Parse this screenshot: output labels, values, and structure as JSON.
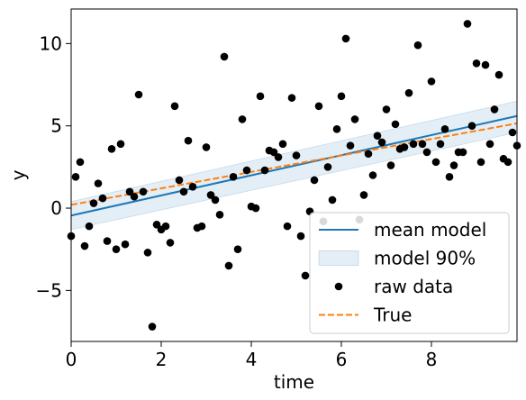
{
  "chart_data": {
    "type": "scatter",
    "title": "",
    "xlabel": "time",
    "ylabel": "y",
    "xlim": [
      0,
      9.9
    ],
    "ylim": [
      -8.1,
      12.1
    ],
    "xticks": [
      0,
      2,
      4,
      6,
      8
    ],
    "yticks": [
      -5,
      0,
      5,
      10
    ],
    "grid": false,
    "legend_position": "lower right",
    "series": [
      {
        "name": "mean model",
        "kind": "line",
        "color": "#1f77b4",
        "x": [
          0,
          9.9
        ],
        "y": [
          -0.45,
          5.6
        ]
      },
      {
        "name": "model 90%",
        "kind": "band",
        "color": "#1f77b4",
        "x": [
          0,
          9.9
        ],
        "lower": [
          -1.3,
          4.6
        ],
        "upper": [
          0.4,
          6.5
        ]
      },
      {
        "name": "raw data",
        "kind": "points",
        "color": "#000000",
        "x": [
          0.0,
          0.1,
          0.2,
          0.3,
          0.4,
          0.5,
          0.6,
          0.7,
          0.8,
          0.9,
          1.0,
          1.1,
          1.2,
          1.3,
          1.4,
          1.5,
          1.6,
          1.7,
          1.8,
          1.9,
          2.0,
          2.1,
          2.2,
          2.3,
          2.4,
          2.5,
          2.6,
          2.7,
          2.8,
          2.9,
          3.0,
          3.1,
          3.2,
          3.3,
          3.4,
          3.5,
          3.6,
          3.7,
          3.8,
          3.9,
          4.0,
          4.1,
          4.2,
          4.3,
          4.4,
          4.5,
          4.6,
          4.7,
          4.8,
          4.9,
          5.0,
          5.1,
          5.2,
          5.3,
          5.4,
          5.5,
          5.6,
          5.7,
          5.8,
          5.9,
          6.0,
          6.1,
          6.2,
          6.3,
          6.4,
          6.5,
          6.6,
          6.7,
          6.8,
          6.9,
          7.0,
          7.1,
          7.2,
          7.3,
          7.4,
          7.5,
          7.6,
          7.7,
          7.8,
          7.9,
          8.0,
          8.1,
          8.2,
          8.3,
          8.4,
          8.5,
          8.6,
          8.7,
          8.8,
          8.9,
          9.0,
          9.1,
          9.2,
          9.3,
          9.4,
          9.5,
          9.6,
          9.7,
          9.8,
          9.9
        ],
        "y": [
          -1.7,
          1.9,
          2.8,
          -2.3,
          -1.1,
          0.3,
          1.5,
          0.6,
          -2.0,
          3.6,
          -2.5,
          3.9,
          -2.2,
          1.0,
          0.7,
          6.9,
          1.0,
          -2.7,
          -7.2,
          -1.0,
          -1.3,
          -1.1,
          -2.1,
          6.2,
          1.7,
          1.0,
          4.1,
          1.3,
          -1.2,
          -1.1,
          3.7,
          0.8,
          0.5,
          -0.4,
          9.2,
          -3.5,
          1.9,
          -2.5,
          5.4,
          2.3,
          0.1,
          0.0,
          6.8,
          2.3,
          3.5,
          3.4,
          3.1,
          3.9,
          -1.1,
          6.7,
          3.2,
          -1.7,
          -4.1,
          -0.2,
          1.7,
          6.2,
          -0.8,
          2.5,
          0.5,
          4.8,
          6.8,
          10.3,
          3.8,
          5.4,
          -0.7,
          0.8,
          3.3,
          2.0,
          4.4,
          4.0,
          6.0,
          2.6,
          5.1,
          3.6,
          3.7,
          7.0,
          3.9,
          9.9,
          3.9,
          3.4,
          7.7,
          2.8,
          3.9,
          4.8,
          1.9,
          2.6,
          3.4,
          3.4,
          11.2,
          5.0,
          8.8,
          2.8,
          8.7,
          3.9,
          6.0,
          8.1,
          3.0,
          2.8,
          4.6,
          3.8
        ]
      },
      {
        "name": "True",
        "kind": "dashed-line",
        "color": "#ff7f0e",
        "x": [
          0,
          9.9
        ],
        "y": [
          0.2,
          5.15
        ]
      }
    ]
  }
}
